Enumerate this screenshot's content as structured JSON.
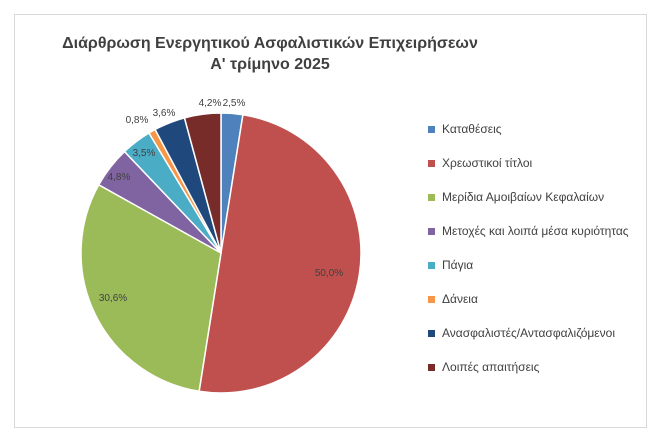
{
  "chart_data": {
    "type": "pie",
    "title": "Διάρθρωση Ενεργητικού Ασφαλιστικών Επιχειρήσεων",
    "subtitle": "Α' τρίμηνο 2025",
    "legend_position": "right",
    "slices": [
      {
        "label": "Καταθέσεις",
        "value": 2.5,
        "value_label": "2,5%",
        "color": "#4F81BD"
      },
      {
        "label": "Χρεωστικοί τίτλοι",
        "value": 50.0,
        "value_label": "50,0%",
        "color": "#C0504D"
      },
      {
        "label": "Μερίδια Αμοιβαίων Κεφαλαίων",
        "value": 30.6,
        "value_label": "30,6%",
        "color": "#9BBB59"
      },
      {
        "label": "Μετοχές και λοιπά μέσα κυριότητας",
        "value": 4.8,
        "value_label": "4,8%",
        "color": "#8064A2"
      },
      {
        "label": "Πάγια",
        "value": 3.5,
        "value_label": "3,5%",
        "color": "#4BACC6"
      },
      {
        "label": "Δάνεια",
        "value": 0.8,
        "value_label": "0,8%",
        "color": "#F79646"
      },
      {
        "label": "Ανασφαλιστές/Αντασφαλιζόμενοι",
        "value": 3.6,
        "value_label": "3,6%",
        "color": "#1F497D"
      },
      {
        "label": "Λοιπές απαιτήσεις",
        "value": 4.2,
        "value_label": "4,2%",
        "color": "#772C2A"
      }
    ]
  }
}
